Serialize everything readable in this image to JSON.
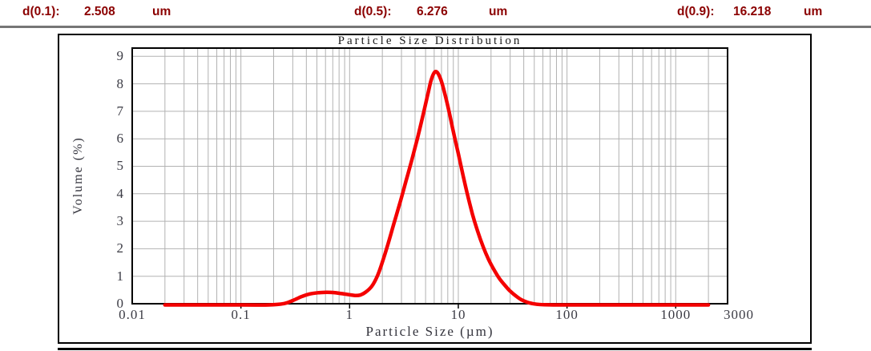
{
  "header": {
    "items": [
      {
        "label": "d(0.1):",
        "value": "2.508",
        "unit": "um"
      },
      {
        "label": "d(0.5):",
        "value": "6.276",
        "unit": "um"
      },
      {
        "label": "d(0.9):",
        "value": "16.218",
        "unit": "um"
      }
    ],
    "text_color": "#8b0000"
  },
  "chart_data": {
    "type": "line",
    "title": "Particle Size Distribution",
    "xlabel": "Particle Size (µm)",
    "ylabel": "Volume (%)",
    "x_scale": "log",
    "xlim": [
      0.01,
      3000
    ],
    "ylim": [
      0,
      9.3
    ],
    "x_tick_values": [
      0.01,
      0.1,
      1,
      10,
      100,
      1000,
      3000
    ],
    "x_tick_labels": [
      "0.01",
      "0.1",
      "1",
      "10",
      "100",
      "1000",
      "3000"
    ],
    "x_major_ticks": [
      0.1,
      1,
      10,
      100,
      1000
    ],
    "grid_minor_multipliers": [
      2,
      3,
      4,
      5,
      6,
      7,
      8,
      9
    ],
    "y_ticks": [
      0,
      1,
      2,
      3,
      4,
      5,
      6,
      7,
      8,
      9
    ],
    "grid": true,
    "legend": "none",
    "colors": {
      "line": "#f40000",
      "grid": "#b2b2b2",
      "axis": "#000000"
    },
    "series": [
      {
        "name": "Volume",
        "points": [
          [
            0.02,
            0
          ],
          [
            0.1,
            0
          ],
          [
            0.18,
            0
          ],
          [
            0.25,
            0.05
          ],
          [
            0.3,
            0.16
          ],
          [
            0.36,
            0.3
          ],
          [
            0.43,
            0.4
          ],
          [
            0.52,
            0.445
          ],
          [
            0.62,
            0.46
          ],
          [
            0.72,
            0.45
          ],
          [
            0.85,
            0.41
          ],
          [
            1.0,
            0.37
          ],
          [
            1.12,
            0.345
          ],
          [
            1.25,
            0.36
          ],
          [
            1.4,
            0.46
          ],
          [
            1.6,
            0.68
          ],
          [
            1.8,
            1.05
          ],
          [
            2.0,
            1.55
          ],
          [
            2.25,
            2.2
          ],
          [
            2.55,
            2.95
          ],
          [
            2.9,
            3.7
          ],
          [
            3.3,
            4.5
          ],
          [
            3.75,
            5.3
          ],
          [
            4.2,
            6.05
          ],
          [
            4.7,
            6.85
          ],
          [
            5.2,
            7.6
          ],
          [
            5.6,
            8.15
          ],
          [
            6.0,
            8.45
          ],
          [
            6.4,
            8.46
          ],
          [
            6.9,
            8.2
          ],
          [
            7.5,
            7.7
          ],
          [
            8.2,
            7.05
          ],
          [
            9,
            6.3
          ],
          [
            10,
            5.5
          ],
          [
            11,
            4.75
          ],
          [
            12,
            4.1
          ],
          [
            13.5,
            3.3
          ],
          [
            15,
            2.7
          ],
          [
            17,
            2.1
          ],
          [
            19,
            1.65
          ],
          [
            21.5,
            1.25
          ],
          [
            24,
            0.95
          ],
          [
            27,
            0.7
          ],
          [
            30,
            0.5
          ],
          [
            34,
            0.32
          ],
          [
            38,
            0.19
          ],
          [
            43,
            0.1
          ],
          [
            48,
            0.05
          ],
          [
            54,
            0.02
          ],
          [
            62,
            0.005
          ],
          [
            75,
            0
          ],
          [
            100,
            0
          ],
          [
            200,
            0
          ],
          [
            500,
            0
          ],
          [
            1000,
            0
          ],
          [
            2000,
            0
          ]
        ]
      }
    ]
  }
}
